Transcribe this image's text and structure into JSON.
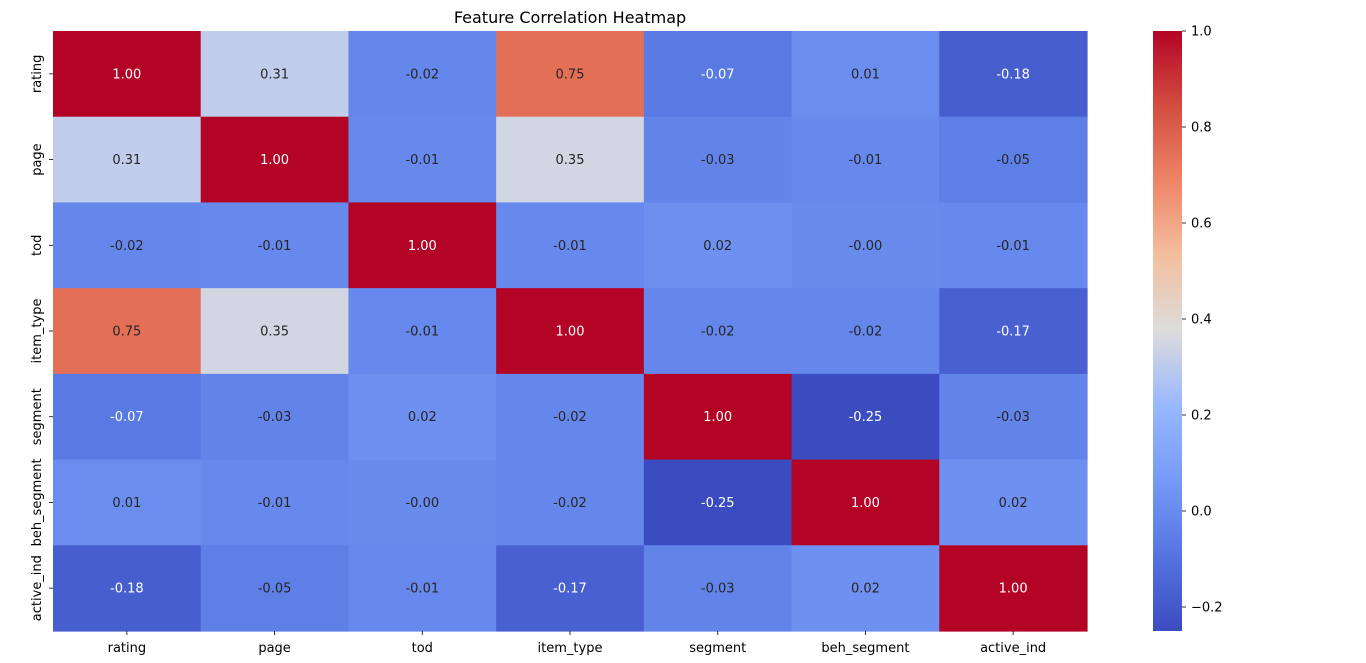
{
  "chart_data": {
    "type": "heatmap",
    "title": "Feature Correlation Heatmap",
    "x_labels": [
      "rating",
      "page",
      "tod",
      "item_type",
      "segment",
      "beh_segment",
      "active_ind"
    ],
    "y_labels": [
      "rating",
      "page",
      "tod",
      "item_type",
      "segment",
      "beh_segment",
      "active_ind"
    ],
    "values": [
      [
        1.0,
        0.31,
        -0.02,
        0.75,
        -0.07,
        0.01,
        -0.18
      ],
      [
        0.31,
        1.0,
        -0.01,
        0.35,
        -0.03,
        -0.01,
        -0.05
      ],
      [
        -0.02,
        -0.01,
        1.0,
        -0.01,
        0.02,
        -0.0,
        -0.01
      ],
      [
        0.75,
        0.35,
        -0.01,
        1.0,
        -0.02,
        -0.02,
        -0.17
      ],
      [
        -0.07,
        -0.03,
        0.02,
        -0.02,
        1.0,
        -0.25,
        -0.03
      ],
      [
        0.01,
        -0.01,
        -0.0,
        -0.02,
        -0.25,
        1.0,
        0.02
      ],
      [
        -0.18,
        -0.05,
        -0.01,
        -0.17,
        -0.03,
        0.02,
        1.0
      ]
    ],
    "colormap": "coolwarm",
    "vmin": -0.25,
    "vmax": 1.0,
    "colorbar_ticks": [
      -0.2,
      0.0,
      0.2,
      0.4,
      0.6,
      0.8,
      1.0
    ],
    "colorbar_tick_labels": [
      "−0.2",
      "0.0",
      "0.2",
      "0.4",
      "0.6",
      "0.8",
      "1.0"
    ],
    "annotation_format": "2 decimals"
  }
}
